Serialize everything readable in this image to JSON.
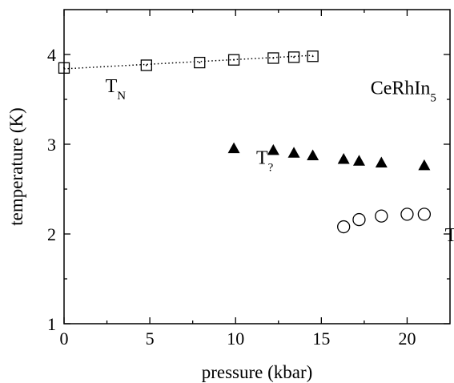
{
  "chart_data": {
    "type": "scatter",
    "xlabel": "pressure  (kbar)",
    "ylabel": "temperature  (K)",
    "xlim": [
      0,
      22.5
    ],
    "ylim": [
      1,
      4.5
    ],
    "x_ticks": [
      0,
      5,
      10,
      15,
      20
    ],
    "y_ticks": [
      1,
      2,
      3,
      4
    ],
    "x_minor_ticks": [
      2.5,
      7.5,
      12.5,
      17.5
    ],
    "y_minor_ticks": [
      1.5,
      2.5,
      3.5
    ],
    "grid": false,
    "legend": "none",
    "series": [
      {
        "name": "T_N",
        "marker": "open-square",
        "x": [
          0,
          4.8,
          7.9,
          9.9,
          12.2,
          13.4,
          14.5
        ],
        "y": [
          3.85,
          3.88,
          3.91,
          3.94,
          3.96,
          3.97,
          3.98
        ],
        "fit_line": {
          "style": "dotted",
          "x": [
            0,
            14.5
          ],
          "y": [
            3.84,
            3.99
          ]
        }
      },
      {
        "name": "T_?",
        "marker": "filled-triangle",
        "x": [
          9.9,
          12.2,
          13.4,
          14.5,
          16.3,
          17.2,
          18.5,
          21.0
        ],
        "y": [
          2.95,
          2.93,
          2.9,
          2.87,
          2.83,
          2.81,
          2.79,
          2.76
        ]
      },
      {
        "name": "T_c",
        "marker": "open-circle",
        "x": [
          16.3,
          17.2,
          18.5,
          20.0,
          21.0
        ],
        "y": [
          2.08,
          2.16,
          2.2,
          2.22,
          2.22
        ]
      }
    ],
    "annotations": [
      {
        "main": "T",
        "sub": "N",
        "x": 3.6,
        "y": 3.58
      },
      {
        "main": "T",
        "sub": "?",
        "x": 12.2,
        "y": 2.78
      },
      {
        "main": "T",
        "sub": "c",
        "x": 23.2,
        "y": 1.92
      },
      {
        "main": "CeRhIn",
        "sub": "5",
        "x": 21.7,
        "y": 3.56
      }
    ]
  }
}
